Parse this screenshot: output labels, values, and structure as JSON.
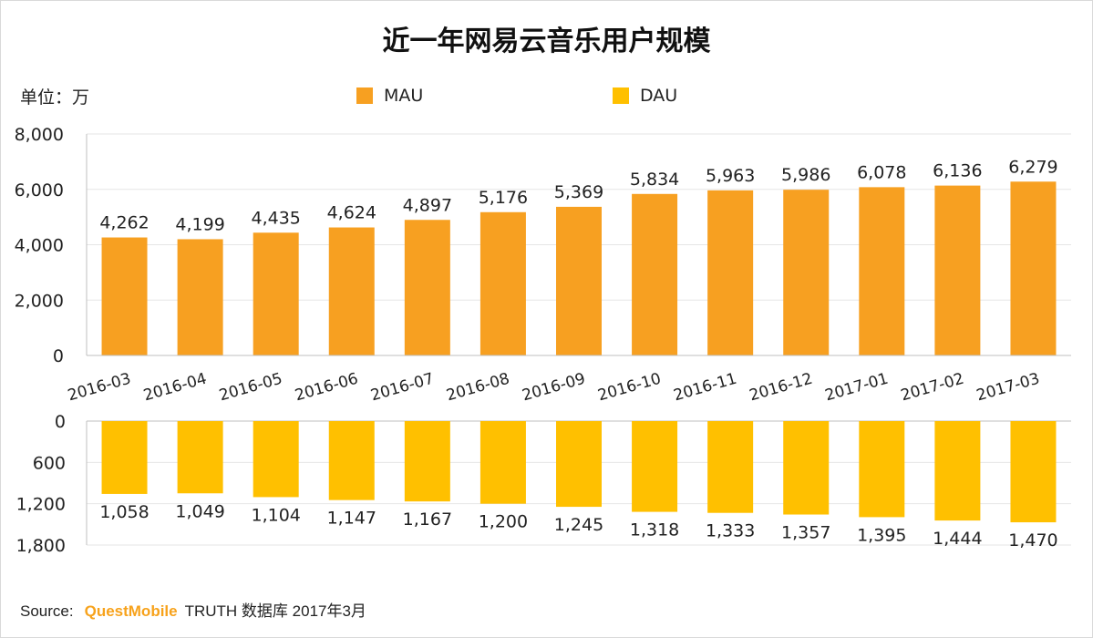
{
  "title": "近一年网易云音乐用户规模",
  "unit_label": "单位：万",
  "source": {
    "prefix": "Source:",
    "brand": "QuestMobile",
    "rest": "TRUTH 数据库 2017年3月"
  },
  "colors": {
    "mau": "#f7a021",
    "dau": "#ffc000",
    "grid": "#e6e6e6",
    "axis": "#bfbfbf"
  },
  "chart_data": [
    {
      "type": "bar",
      "series_name": "MAU",
      "categories": [
        "2016-03",
        "2016-04",
        "2016-05",
        "2016-06",
        "2016-07",
        "2016-08",
        "2016-09",
        "2016-10",
        "2016-11",
        "2016-12",
        "2017-01",
        "2017-02",
        "2017-03"
      ],
      "values": [
        4262,
        4199,
        4435,
        4624,
        4897,
        5176,
        5369,
        5834,
        5963,
        5986,
        6078,
        6136,
        6279
      ],
      "value_labels": [
        "4,262",
        "4,199",
        "4,435",
        "4,624",
        "4,897",
        "5,176",
        "5,369",
        "5,834",
        "5,963",
        "5,986",
        "6,078",
        "6,136",
        "6,279"
      ],
      "ylim": [
        0,
        8000
      ],
      "yticks": [
        0,
        2000,
        4000,
        6000,
        8000
      ],
      "ytick_labels": [
        "0",
        "2,000",
        "4,000",
        "6,000",
        "8,000"
      ],
      "grid": true
    },
    {
      "type": "bar",
      "series_name": "DAU",
      "orientation": "inverted",
      "categories": [
        "2016-03",
        "2016-04",
        "2016-05",
        "2016-06",
        "2016-07",
        "2016-08",
        "2016-09",
        "2016-10",
        "2016-11",
        "2016-12",
        "2017-01",
        "2017-02",
        "2017-03"
      ],
      "values": [
        1058,
        1049,
        1104,
        1147,
        1167,
        1200,
        1245,
        1318,
        1333,
        1357,
        1395,
        1444,
        1470
      ],
      "value_labels": [
        "1,058",
        "1,049",
        "1,104",
        "1,147",
        "1,167",
        "1,200",
        "1,245",
        "1,318",
        "1,333",
        "1,357",
        "1,395",
        "1,444",
        "1,470"
      ],
      "ylim": [
        0,
        1800
      ],
      "yticks": [
        0,
        600,
        1200,
        1800
      ],
      "ytick_labels": [
        "0",
        "600",
        "1,200",
        "1,800"
      ],
      "grid": true
    }
  ],
  "legend": [
    {
      "label": "MAU",
      "color": "#f7a021"
    },
    {
      "label": "DAU",
      "color": "#ffc000"
    }
  ]
}
